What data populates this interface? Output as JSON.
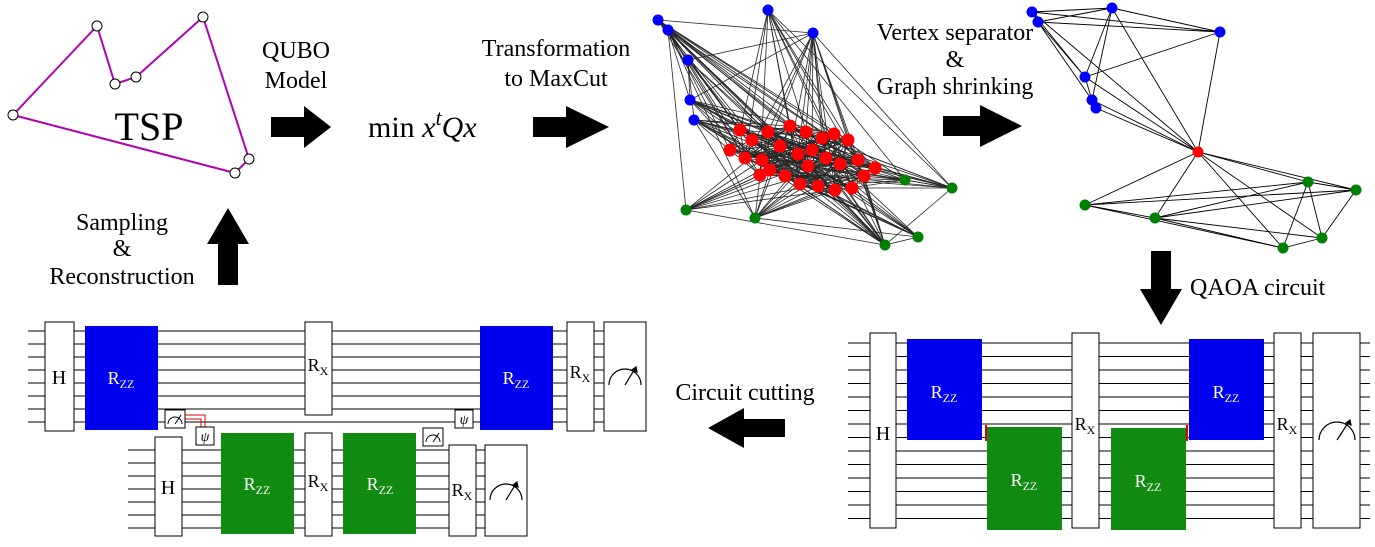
{
  "colors": {
    "tsp_route": "#b000b0",
    "group_blue": "#0000ff",
    "group_red": "#ff0000",
    "group_green": "#008000",
    "rzz_blue": "#0000ee",
    "rzz_green": "#118a11",
    "arrow": "#000000",
    "classical_wire": "#e00000"
  },
  "labels": {
    "tsp": "TSP",
    "qubo_line1": "QUBO",
    "qubo_line2": "Model",
    "formula_prefix": "min ",
    "formula_x1": "x",
    "formula_t": "t",
    "formula_Qx": "Qx",
    "maxcut_line1": "Transformation",
    "maxcut_line2": "to MaxCut",
    "separator_line1": "Vertex separator",
    "separator_line2": "&",
    "separator_line3": "Graph shrinking",
    "qaoa": "QAOA circuit",
    "cutting": "Circuit cutting",
    "sampling_line1": "Sampling",
    "sampling_line2": "&",
    "sampling_line3": "Reconstruction"
  },
  "gates": {
    "hadamard": "H",
    "r": "R",
    "zz": "ZZ",
    "x": "X",
    "psi": "ψ"
  },
  "icons": [
    "right-arrow-icon",
    "left-arrow-icon",
    "down-arrow-icon",
    "up-arrow-icon",
    "meter-icon",
    "psi-prep-icon"
  ]
}
